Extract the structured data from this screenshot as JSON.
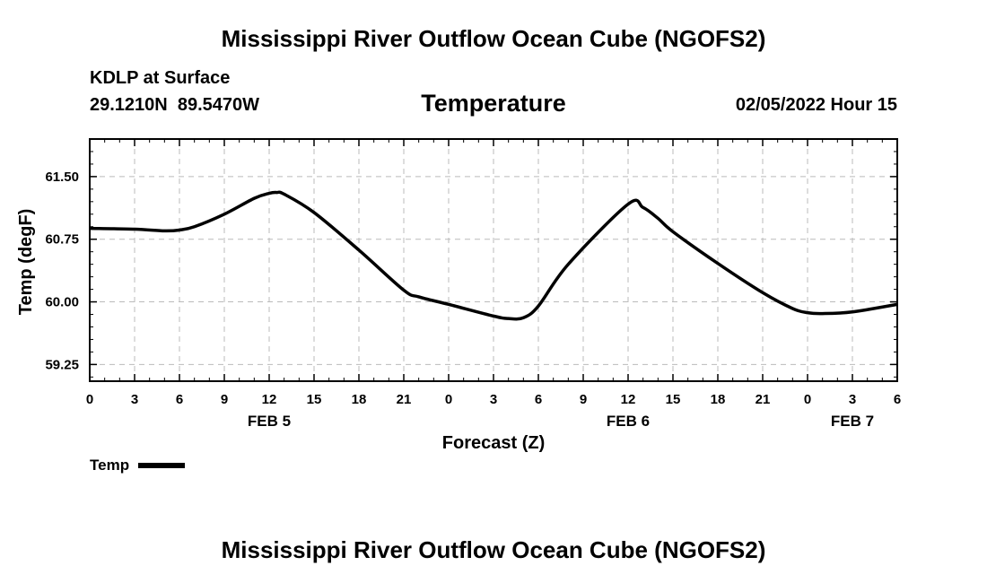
{
  "header": {
    "main_title": "Mississippi River Outflow Ocean Cube (NGOFS2)",
    "station": "KDLP at Surface",
    "coords": "29.1210N  89.5470W",
    "variable": "Temperature",
    "datetime": "02/05/2022 Hour 15"
  },
  "footer": {
    "title": "Mississippi River Outflow Ocean Cube (NGOFS2)"
  },
  "legend": {
    "label": "Temp",
    "color": "#000000"
  },
  "chart_data": {
    "type": "line",
    "title": "Temperature",
    "xlabel": "Forecast (Z)",
    "ylabel": "Temp (degF)",
    "x_unit": "forecast hour from 00Z FEB 5",
    "xlim": [
      0,
      54
    ],
    "ylim": [
      59.05,
      61.95
    ],
    "x_ticks": [
      0,
      3,
      6,
      9,
      12,
      15,
      18,
      21,
      24,
      27,
      30,
      33,
      36,
      39,
      42,
      45,
      48,
      51,
      54
    ],
    "x_tick_labels": [
      "0",
      "3",
      "6",
      "9",
      "12",
      "15",
      "18",
      "21",
      "0",
      "3",
      "6",
      "9",
      "12",
      "15",
      "18",
      "21",
      "0",
      "3",
      "6"
    ],
    "y_ticks": [
      59.25,
      60.0,
      60.75,
      61.5
    ],
    "y_tick_labels": [
      "59.25",
      "60.00",
      "60.75",
      "61.50"
    ],
    "day_labels": [
      {
        "x": 12,
        "label": "FEB 5"
      },
      {
        "x": 36,
        "label": "FEB 6"
      },
      {
        "x": 51,
        "label": "FEB 7"
      }
    ],
    "grid": true,
    "legend_position": "bottom-left",
    "series": [
      {
        "name": "Temp",
        "color": "#000000",
        "x": [
          0,
          3,
          5,
          6,
          7,
          9,
          11,
          12,
          12.5,
          13,
          15,
          18,
          21,
          22,
          24,
          27,
          28,
          29,
          30,
          32,
          36,
          37,
          38,
          39,
          42,
          45,
          47,
          48,
          49,
          51,
          54
        ],
        "y": [
          60.88,
          60.87,
          60.85,
          60.86,
          60.9,
          61.05,
          61.24,
          61.3,
          61.31,
          61.29,
          61.07,
          60.62,
          60.14,
          60.06,
          59.97,
          59.83,
          59.8,
          59.81,
          59.95,
          60.45,
          61.17,
          61.13,
          61.0,
          60.84,
          60.46,
          60.11,
          59.92,
          59.87,
          59.86,
          59.88,
          59.97
        ]
      }
    ]
  }
}
